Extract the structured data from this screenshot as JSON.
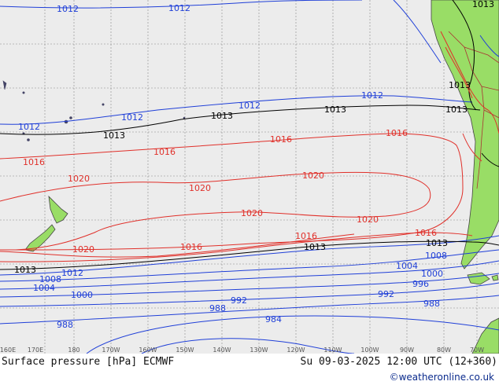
{
  "map": {
    "ocean_color": "#ececec",
    "land_color": "#99dd66",
    "isobar_colors": {
      "low": "#1f3fd8",
      "standard": "#000000",
      "high": "#e0302a"
    },
    "longitude_ticks": [
      "160E",
      "170E",
      "180",
      "170W",
      "160W",
      "150W",
      "140W",
      "130W",
      "120W",
      "110W",
      "100W",
      "90W",
      "80W",
      "70W"
    ],
    "isobar_labels": {
      "p1012a": "1012",
      "p1012b": "1012",
      "p1012c": "1012",
      "p1012d": "1012",
      "p1012e": "1012",
      "p1012f": "1012",
      "p1012g": "1012",
      "p1013a": "1013",
      "p1013b": "1013",
      "p1013c": "1013",
      "p1013d": "1013",
      "p1013e": "1013",
      "p1013f": "1013",
      "p1013g": "1013",
      "p1016a": "1016",
      "p1016b": "1016",
      "p1016c": "1016",
      "p1016d": "1016",
      "p1016e": "1016",
      "p1016f": "1016",
      "p1016g": "1016",
      "p1020a": "1020",
      "p1020b": "1020",
      "p1020c": "1020",
      "p1020d": "1020",
      "p1020e": "1020",
      "p1020f": "1020",
      "p1008a": "1008",
      "p1008b": "1008",
      "p1004a": "1004",
      "p1004b": "1004",
      "p1000a": "1000",
      "p1000b": "1000",
      "p996": "996",
      "p992a": "992",
      "p992b": "992",
      "p988a": "988",
      "p988b": "988",
      "p988c": "988",
      "p984": "984",
      "p1013n": "1013",
      "p1013m": "1013"
    }
  },
  "footer": {
    "title": "Surface pressure [hPa] ECMWF",
    "valid_time": "Su 09-03-2025 12:00 UTC (12+360)",
    "credit": "©weatheronline.co.uk"
  }
}
